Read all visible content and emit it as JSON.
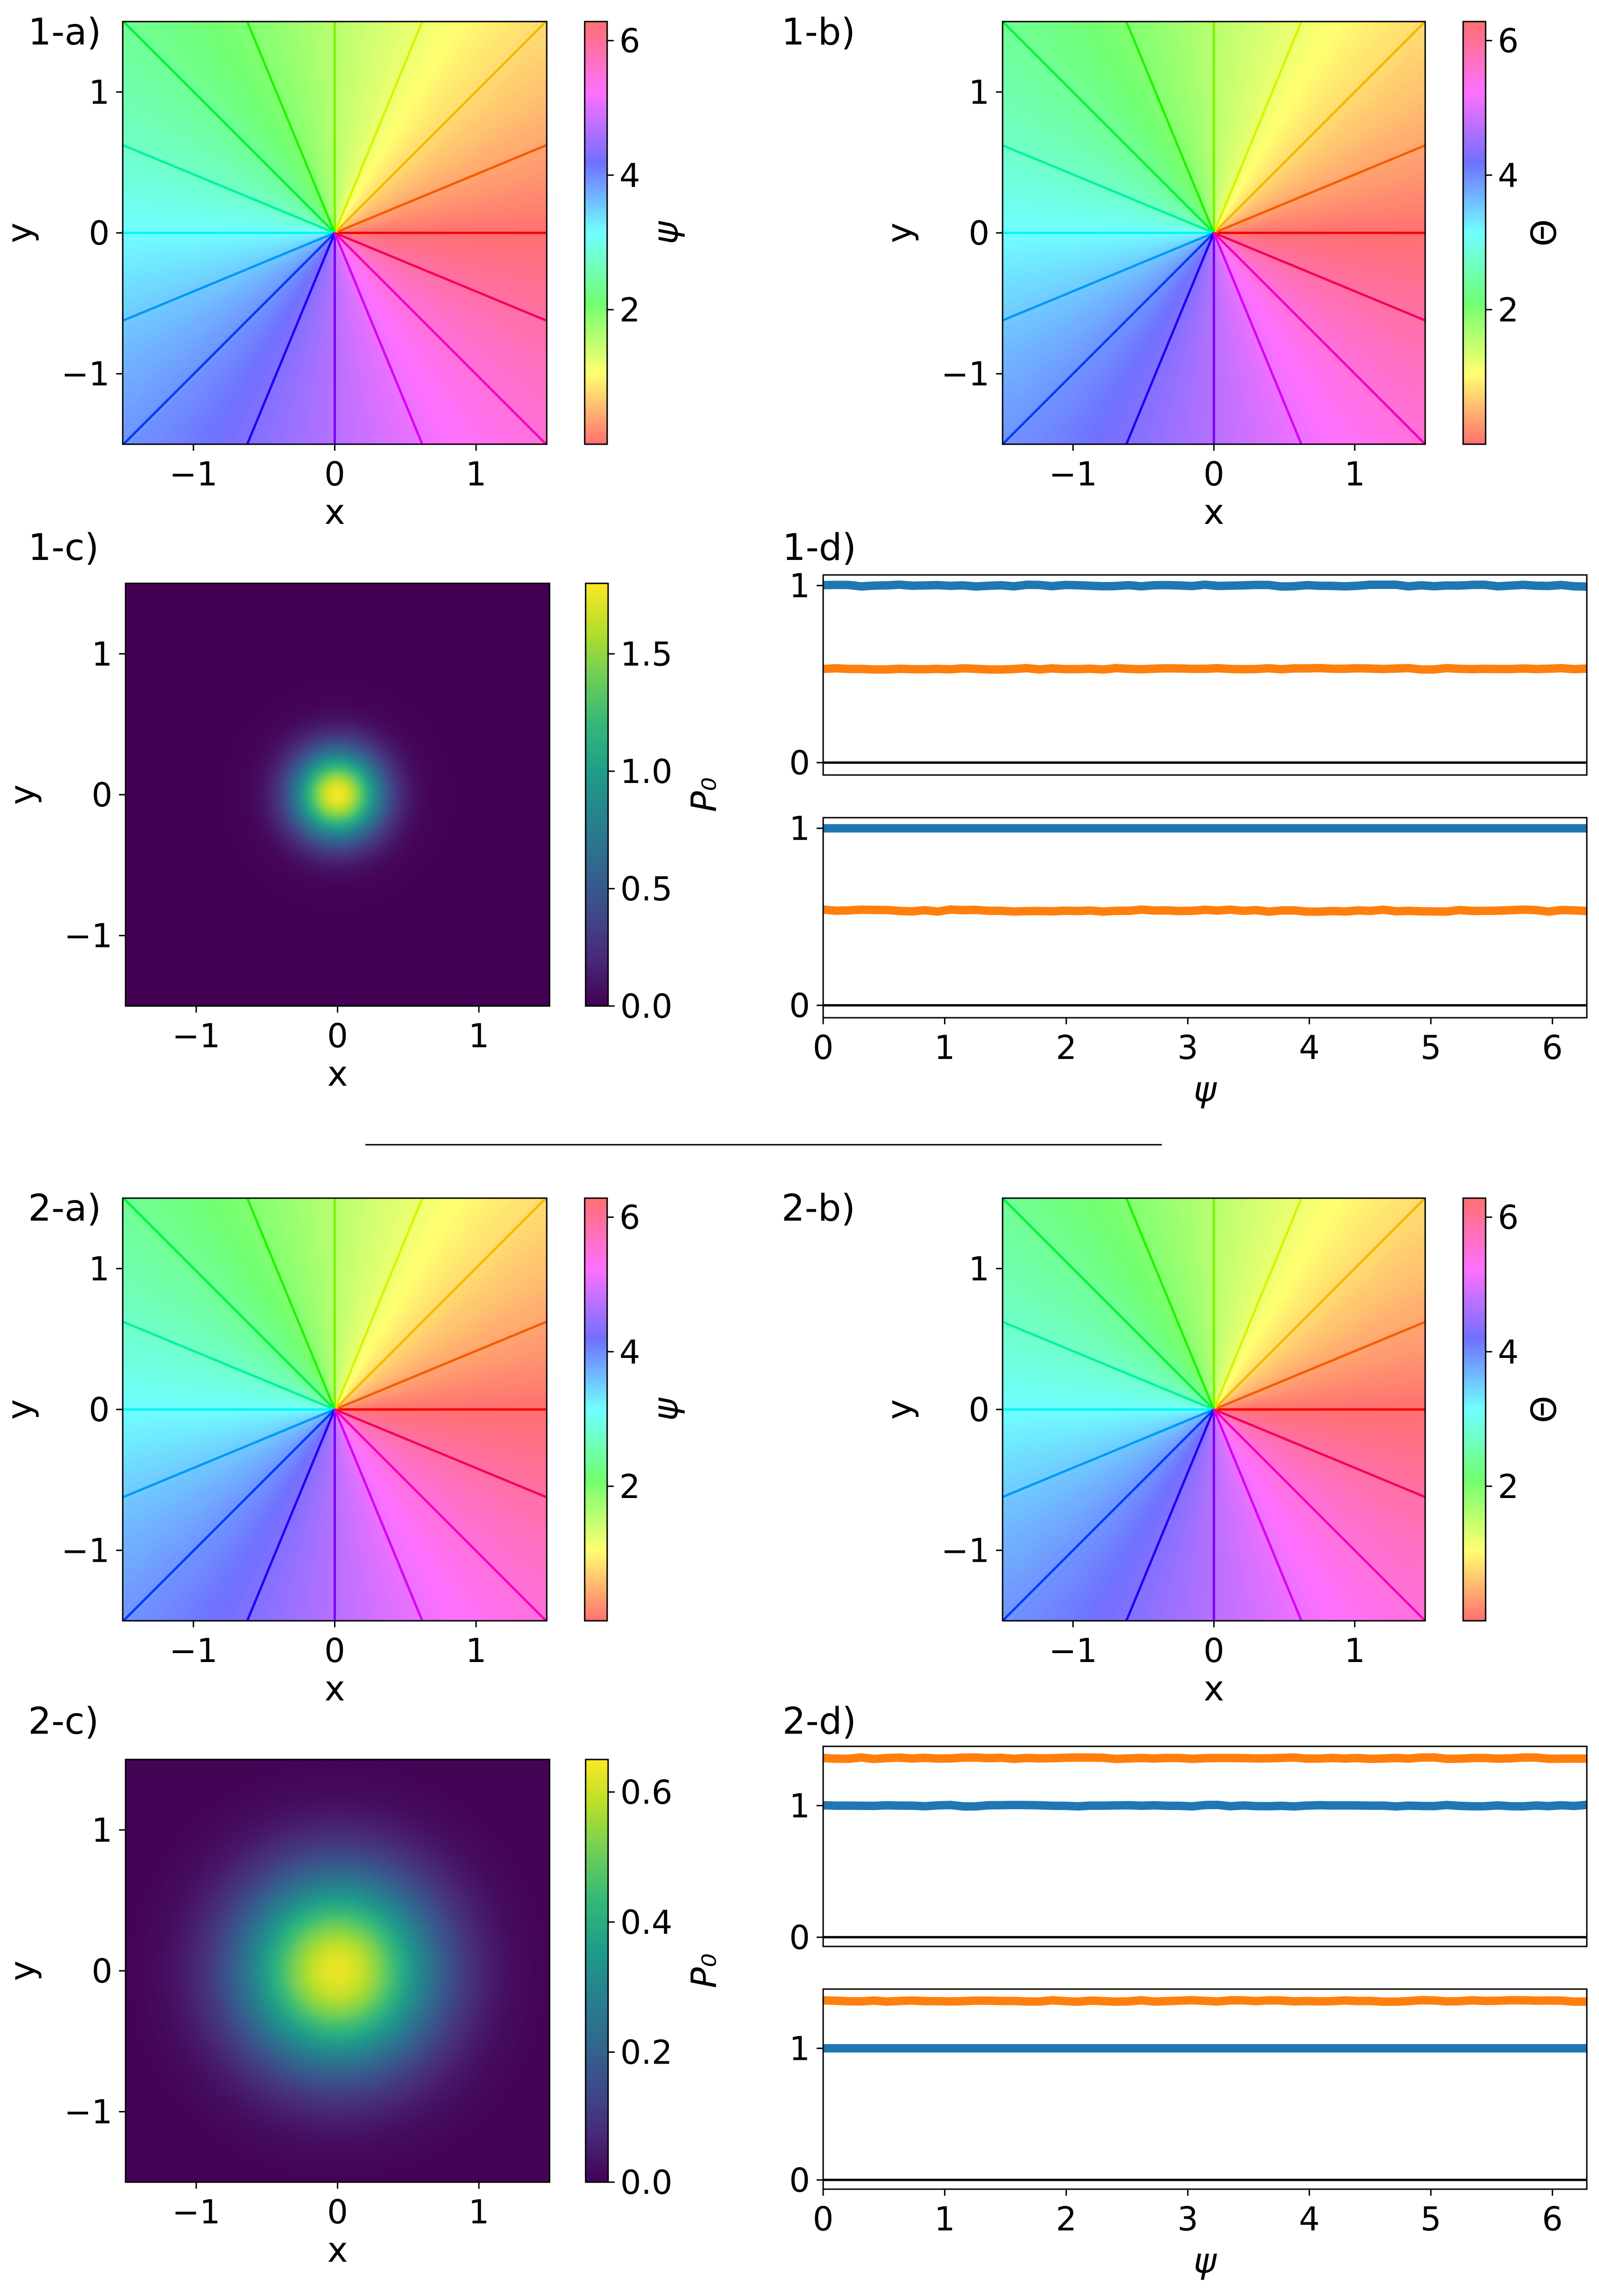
{
  "chart_data": [
    {
      "id": "1-a",
      "panel_label": "1-a)",
      "type": "heatmap",
      "field": "angle",
      "xlabel": "x",
      "ylabel": "y",
      "colorbar_label": "ψ",
      "colorbar_italic": true,
      "xlim": [
        -1.5,
        1.5
      ],
      "ylim": [
        -1.5,
        1.5
      ],
      "xticks": [
        -1,
        0,
        1
      ],
      "yticks": [
        -1,
        0,
        1
      ],
      "colorbar_range": [
        0,
        6.283
      ],
      "colorbar_ticks": [
        2,
        4,
        6
      ],
      "colormap": "hsv-light",
      "contour_levels": 16
    },
    {
      "id": "1-b",
      "panel_label": "1-b)",
      "type": "heatmap",
      "field": "angle",
      "xlabel": "x",
      "ylabel": "y",
      "colorbar_label": "Θ",
      "colorbar_italic": false,
      "xlim": [
        -1.5,
        1.5
      ],
      "ylim": [
        -1.5,
        1.5
      ],
      "xticks": [
        -1,
        0,
        1
      ],
      "yticks": [
        -1,
        0,
        1
      ],
      "colorbar_range": [
        0,
        6.283
      ],
      "colorbar_ticks": [
        2,
        4,
        6
      ],
      "colormap": "hsv-light",
      "contour_levels": 16
    },
    {
      "id": "1-c",
      "panel_label": "1-c)",
      "type": "heatmap",
      "field": "gaussian",
      "xlabel": "x",
      "ylabel": "y",
      "colorbar_label": "P₀",
      "colorbar_italic": true,
      "xlim": [
        -1.5,
        1.5
      ],
      "ylim": [
        -1.5,
        1.5
      ],
      "xticks": [
        -1,
        0,
        1
      ],
      "yticks": [
        -1,
        0,
        1
      ],
      "colorbar_range": [
        0,
        1.8
      ],
      "colorbar_ticks": [
        0.0,
        0.5,
        1.0,
        1.5
      ],
      "colorbar_tick_labels": [
        "0.0",
        "0.5",
        "1.0",
        "1.5"
      ],
      "colormap": "viridis",
      "peak": 1.78,
      "sigma": 0.22
    },
    {
      "id": "1-d-top",
      "panel_label": "1-d)",
      "type": "line",
      "xlim": [
        0,
        6.283
      ],
      "ylim": [
        -0.07,
        1.06
      ],
      "yticks": [
        0,
        1
      ],
      "xticks": [],
      "series": [
        {
          "color": "#1f77b4",
          "baseline": 1.0,
          "noise": 0.006
        },
        {
          "color": "#ff7f0e",
          "baseline": 0.53,
          "noise": 0.004
        },
        {
          "color": "#000000",
          "baseline": 0.0,
          "noise": 0,
          "thin": true
        }
      ]
    },
    {
      "id": "1-d-bottom",
      "panel_label": "",
      "type": "line",
      "xlim": [
        0,
        6.283
      ],
      "ylim": [
        -0.07,
        1.06
      ],
      "yticks": [
        0,
        1
      ],
      "xticks": [
        0,
        1,
        2,
        3,
        4,
        5,
        6
      ],
      "xlabel": "ψ",
      "series": [
        {
          "color": "#1f77b4",
          "baseline": 1.0,
          "noise": 0.0
        },
        {
          "color": "#ff7f0e",
          "baseline": 0.535,
          "noise": 0.006
        },
        {
          "color": "#000000",
          "baseline": 0.0,
          "noise": 0,
          "thin": true
        }
      ]
    },
    {
      "id": "2-a",
      "panel_label": "2-a)",
      "type": "heatmap",
      "field": "angle",
      "xlabel": "x",
      "ylabel": "y",
      "colorbar_label": "ψ",
      "colorbar_italic": true,
      "xlim": [
        -1.5,
        1.5
      ],
      "ylim": [
        -1.5,
        1.5
      ],
      "xticks": [
        -1,
        0,
        1
      ],
      "yticks": [
        -1,
        0,
        1
      ],
      "colorbar_range": [
        0,
        6.283
      ],
      "colorbar_ticks": [
        2,
        4,
        6
      ],
      "colormap": "hsv-light",
      "contour_levels": 16
    },
    {
      "id": "2-b",
      "panel_label": "2-b)",
      "type": "heatmap",
      "field": "angle",
      "xlabel": "x",
      "ylabel": "y",
      "colorbar_label": "Θ",
      "colorbar_italic": false,
      "xlim": [
        -1.5,
        1.5
      ],
      "ylim": [
        -1.5,
        1.5
      ],
      "xticks": [
        -1,
        0,
        1
      ],
      "yticks": [
        -1,
        0,
        1
      ],
      "colorbar_range": [
        0,
        6.283
      ],
      "colorbar_ticks": [
        2,
        4,
        6
      ],
      "colormap": "hsv-light",
      "contour_levels": 16
    },
    {
      "id": "2-c",
      "panel_label": "2-c)",
      "type": "heatmap",
      "field": "gaussian",
      "xlabel": "x",
      "ylabel": "y",
      "colorbar_label": "P₀",
      "colorbar_italic": true,
      "xlim": [
        -1.5,
        1.5
      ],
      "ylim": [
        -1.5,
        1.5
      ],
      "xticks": [
        -1,
        0,
        1
      ],
      "yticks": [
        -1,
        0,
        1
      ],
      "colorbar_range": [
        0,
        0.65
      ],
      "colorbar_ticks": [
        0.0,
        0.2,
        0.4,
        0.6
      ],
      "colorbar_tick_labels": [
        "0.0",
        "0.2",
        "0.4",
        "0.6"
      ],
      "colormap": "viridis",
      "peak": 0.63,
      "sigma": 0.48
    },
    {
      "id": "2-d-top",
      "panel_label": "2-d)",
      "type": "line",
      "xlim": [
        0,
        6.283
      ],
      "ylim": [
        -0.07,
        1.45
      ],
      "yticks": [
        0,
        1
      ],
      "xticks": [],
      "series": [
        {
          "color": "#ff7f0e",
          "baseline": 1.36,
          "noise": 0.006
        },
        {
          "color": "#1f77b4",
          "baseline": 1.0,
          "noise": 0.006
        },
        {
          "color": "#000000",
          "baseline": 0.0,
          "noise": 0,
          "thin": true
        }
      ]
    },
    {
      "id": "2-d-bottom",
      "panel_label": "",
      "type": "line",
      "xlim": [
        0,
        6.283
      ],
      "ylim": [
        -0.07,
        1.45
      ],
      "yticks": [
        0,
        1
      ],
      "xticks": [
        0,
        1,
        2,
        3,
        4,
        5,
        6
      ],
      "xlabel": "ψ",
      "series": [
        {
          "color": "#ff7f0e",
          "baseline": 1.36,
          "noise": 0.006
        },
        {
          "color": "#1f77b4",
          "baseline": 1.0,
          "noise": 0.0
        },
        {
          "color": "#000000",
          "baseline": 0.0,
          "noise": 0,
          "thin": true
        }
      ]
    }
  ]
}
